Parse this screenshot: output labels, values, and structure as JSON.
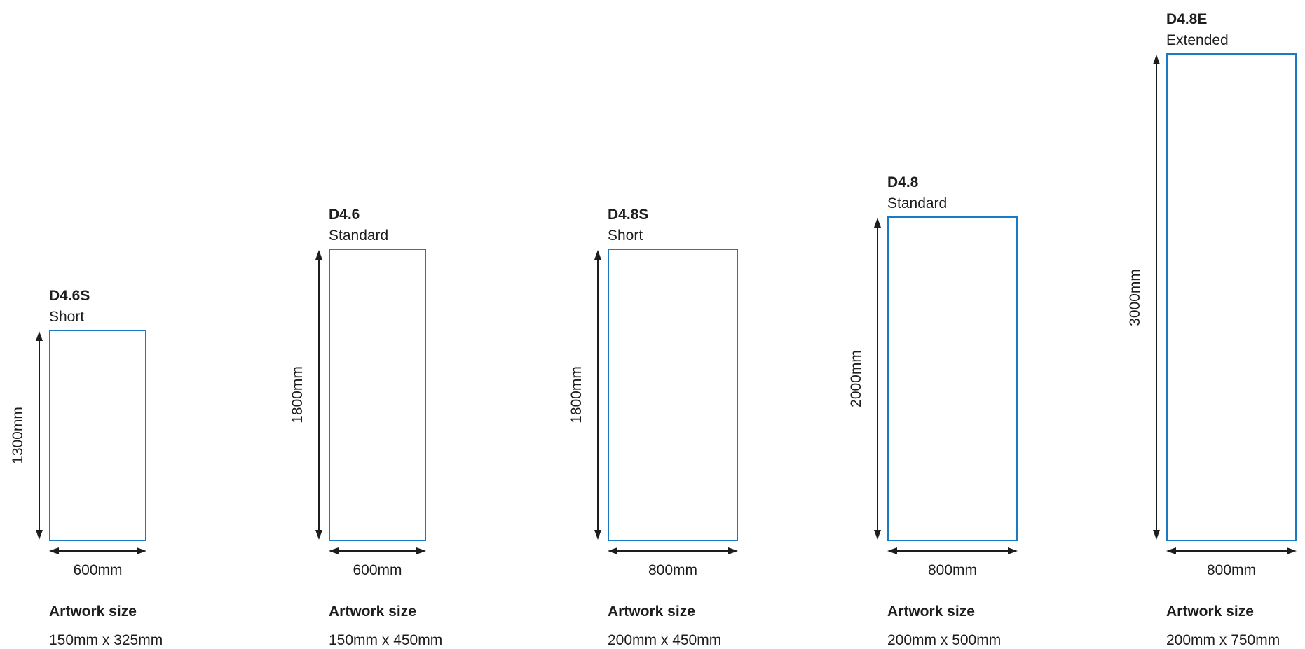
{
  "colors": {
    "outline": "#1a7bc4",
    "text": "#1d1d1b",
    "arrow": "#1d1d1b"
  },
  "products": [
    {
      "code": "D4.6S",
      "type": "Short",
      "height": "1300mm",
      "width": "600mm",
      "artwork_heading": "Artwork size",
      "artwork_size": "150mm x 325mm"
    },
    {
      "code": "D4.6",
      "type": "Standard",
      "height": "1800mm",
      "width": "600mm",
      "artwork_heading": "Artwork size",
      "artwork_size": "150mm x 450mm"
    },
    {
      "code": "D4.8S",
      "type": "Short",
      "height": "1800mm",
      "width": "800mm",
      "artwork_heading": "Artwork size",
      "artwork_size": "200mm x 450mm"
    },
    {
      "code": "D4.8",
      "type": "Standard",
      "height": "2000mm",
      "width": "800mm",
      "artwork_heading": "Artwork size",
      "artwork_size": "200mm x 500mm"
    },
    {
      "code": "D4.8E",
      "type": "Extended",
      "height": "3000mm",
      "width": "800mm",
      "artwork_heading": "Artwork size",
      "artwork_size": "200mm x 750mm"
    }
  ]
}
